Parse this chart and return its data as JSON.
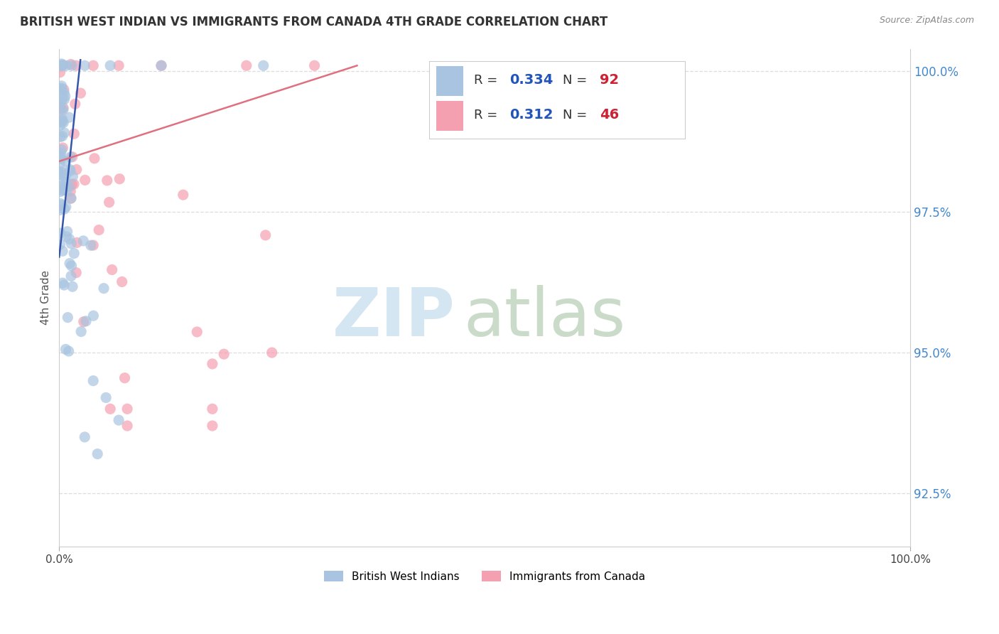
{
  "title": "BRITISH WEST INDIAN VS IMMIGRANTS FROM CANADA 4TH GRADE CORRELATION CHART",
  "source": "Source: ZipAtlas.com",
  "ylabel": "4th Grade",
  "xlim": [
    0.0,
    1.0
  ],
  "ylim": [
    0.9155,
    1.004
  ],
  "ytick_labels": [
    "92.5%",
    "95.0%",
    "97.5%",
    "100.0%"
  ],
  "ytick_values": [
    0.925,
    0.95,
    0.975,
    1.0
  ],
  "xtick_labels": [
    "0.0%",
    "100.0%"
  ],
  "xtick_values": [
    0.0,
    1.0
  ],
  "legend_r_blue": "0.334",
  "legend_n_blue": "92",
  "legend_r_pink": "0.312",
  "legend_n_pink": "46",
  "blue_color": "#a8c4e0",
  "pink_color": "#f4a0b0",
  "trendline_blue_color": "#3355aa",
  "trendline_pink_color": "#e07080",
  "blue_label": "British West Indians",
  "pink_label": "Immigrants from Canada",
  "title_color": "#333333",
  "source_color": "#888888",
  "ytick_color": "#4488cc",
  "grid_color": "#dddddd",
  "watermark_zip_color": "#d0e4f0",
  "watermark_atlas_color": "#c5d8c5"
}
